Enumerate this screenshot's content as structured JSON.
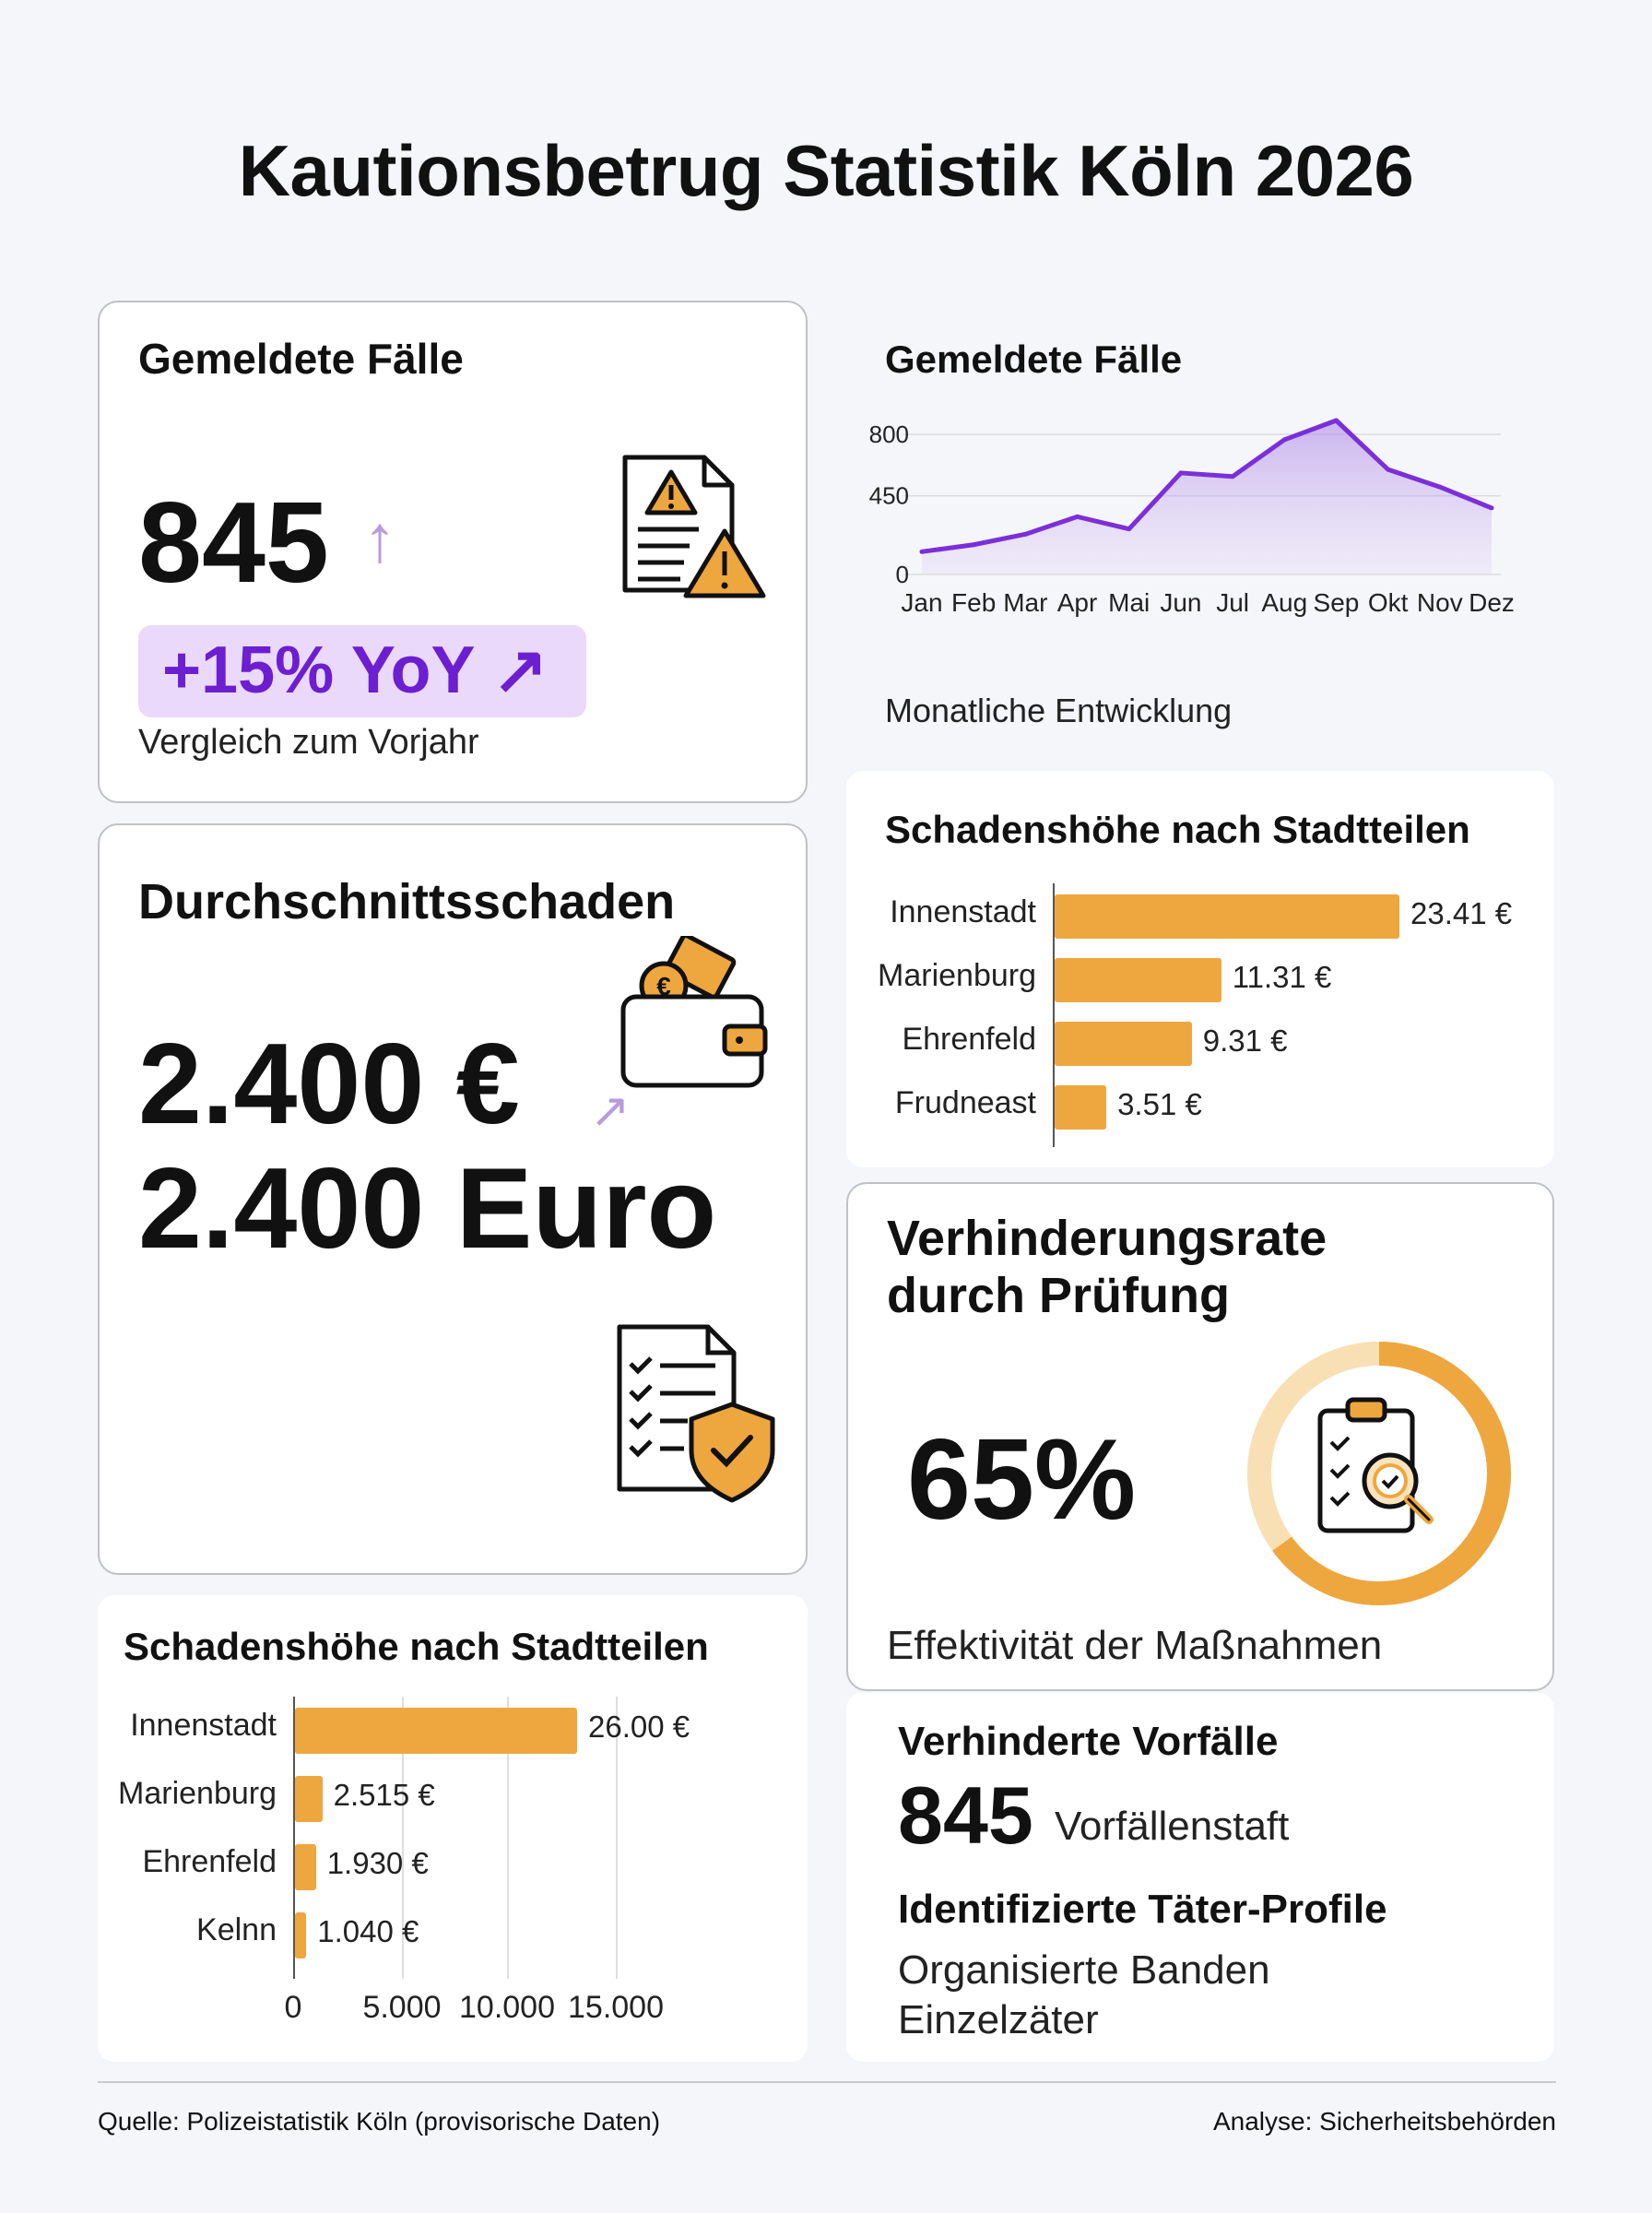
{
  "title": "Kautionsbetrug Statistik Köln 2026",
  "cases_card": {
    "heading": "Gemeldete Fälle",
    "value": "845",
    "arrow": "↑",
    "badge": "+15% YoY ↗",
    "note": "Vergleich zum Vorjahr",
    "icon": "document-warning-icon"
  },
  "line_panel": {
    "heading": "Gemeldete Fälle",
    "caption": "Monatliche Entwicklung"
  },
  "avg_card": {
    "heading": "Durchschnittsschaden",
    "value_eur": "2.400 €",
    "value_euro": "2.400 Euro",
    "arrow": "↗",
    "icons": [
      "wallet-icon",
      "checklist-shield-icon"
    ]
  },
  "bars_top": {
    "heading": "Schadenshöhe nach Stadtteilen"
  },
  "prevention_card": {
    "heading_line1": "Verhinderungsrate",
    "heading_line2": "durch Prüfung",
    "value": "65%",
    "caption": "Effektivität der Maßnahmen",
    "icon": "clipboard-magnifier-icon"
  },
  "bars_bottom": {
    "heading": "Schadenshöhe nach Stadtteilen"
  },
  "prevented_panel": {
    "heading": "Verhinderte Vorfälle",
    "value": "845",
    "value_suffix": "Vorfällenstaft",
    "profiles_heading": "Identifizierte Täter-Profile",
    "profiles": [
      "Organisierte Banden",
      "Einzelzäter"
    ]
  },
  "footer": {
    "source": "Quelle: Polizeistatistik Köln (provisorische Daten)",
    "analysis": "Analyse: Sicherheitsbehörden"
  },
  "colors": {
    "accent_purple": "#7b2fd9",
    "bar_orange": "#eea73e",
    "badge_bg": "#ead9fb",
    "donut_light": "#f9dfb4"
  },
  "chart_data": [
    {
      "type": "line",
      "title": "Gemeldete Fälle",
      "x": [
        "Jan",
        "Feb",
        "Mar",
        "Apr",
        "Mai",
        "Jun",
        "Jul",
        "Aug",
        "Sep",
        "Okt",
        "Nov",
        "Dez"
      ],
      "series": [
        {
          "values": [
            130,
            170,
            230,
            330,
            260,
            580,
            560,
            770,
            880,
            600,
            500,
            380
          ]
        }
      ],
      "yticks": [
        "800",
        "450",
        "0"
      ],
      "ytick_values": [
        800,
        450,
        0
      ],
      "ylim": [
        0,
        880
      ],
      "grid": true
    },
    {
      "type": "bar",
      "orientation": "horizontal",
      "title": "Schadenshöhe nach Stadtteilen",
      "categories": [
        "Innenstadt",
        "Marienburg",
        "Ehrenfeld",
        "Frudneast"
      ],
      "values": [
        23.41,
        11.31,
        9.31,
        3.51
      ],
      "labels": [
        "23.41 €",
        "11.31 €",
        "9.31 €",
        "3.51 €"
      ]
    },
    {
      "type": "pie",
      "title": "Verhinderungsrate durch Prüfung",
      "values": [
        65,
        35
      ],
      "label": "65%"
    },
    {
      "type": "bar",
      "orientation": "horizontal",
      "title": "Schadenshöhe nach Stadtteilen",
      "categories": [
        "Innenstadt",
        "Marienburg",
        "Ehrenfeld",
        "Kelnn"
      ],
      "values": [
        26.0,
        2.515,
        1.93,
        1.04
      ],
      "labels": [
        "26.00 €",
        "2.515 €",
        "1.930 €",
        "1.040 €"
      ],
      "xticks": [
        "0",
        "5.000",
        "10.000",
        "15.000"
      ]
    }
  ]
}
